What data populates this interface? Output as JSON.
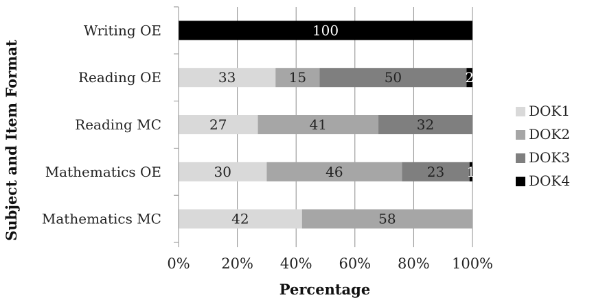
{
  "chart_data": {
    "type": "bar",
    "orientation": "horizontal",
    "stacked": "percent",
    "categories": [
      "Writing OE",
      "Reading OE",
      "Reading MC",
      "Mathematics OE",
      "Mathematics MC"
    ],
    "series": [
      {
        "name": "DOK1",
        "color": "#d9d9d9",
        "values": [
          0,
          33,
          27,
          30,
          42
        ]
      },
      {
        "name": "DOK2",
        "color": "#a6a6a6",
        "values": [
          0,
          15,
          41,
          46,
          58
        ]
      },
      {
        "name": "DOK3",
        "color": "#7f7f7f",
        "values": [
          0,
          50,
          32,
          23,
          0
        ]
      },
      {
        "name": "DOK4",
        "color": "#000000",
        "values": [
          100,
          2,
          0,
          1,
          0
        ]
      }
    ],
    "xlabel": "Percentage",
    "ylabel": "Subject and Item Format",
    "xlim": [
      0,
      100
    ],
    "xticks": [
      "0%",
      "20%",
      "40%",
      "60%",
      "80%",
      "100%"
    ],
    "grid": "vertical",
    "legend": "right"
  }
}
